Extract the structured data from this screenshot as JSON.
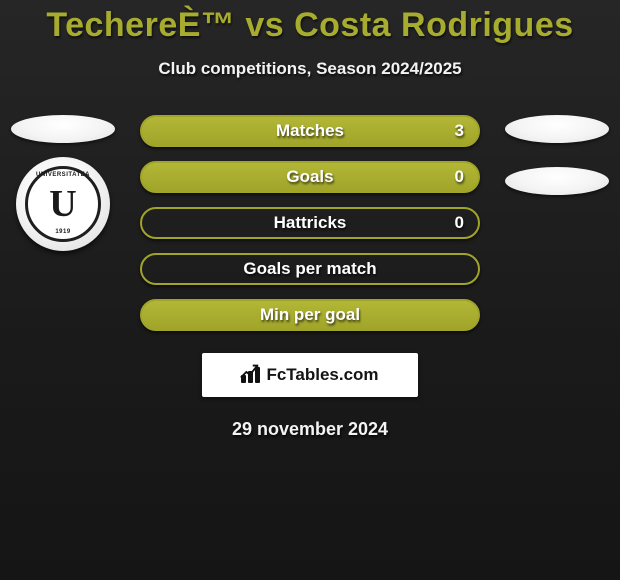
{
  "title": "TechereÈ™ vs Costa Rodrigues",
  "subtitle": "Club competitions, Season 2024/2025",
  "date": "29 november 2024",
  "colors": {
    "accent": "#a8ac2e",
    "bar_fill_top": "#b3b737",
    "bar_fill_bottom": "#a0a429",
    "bar_border": "#a0a429",
    "text_light": "#f3f3f3",
    "background_top": "#262626",
    "background_bottom": "#151515",
    "white": "#ffffff"
  },
  "left_team": {
    "logo_top_text": "UNIVERSITATEA",
    "logo_letter": "U",
    "logo_bottom_text": "1919",
    "logo_aria": "F.C. Universitatea Cluj 1919"
  },
  "stats": [
    {
      "label": "Matches",
      "value": "3",
      "filled": true,
      "has_value": true
    },
    {
      "label": "Goals",
      "value": "0",
      "filled": true,
      "has_value": true
    },
    {
      "label": "Hattricks",
      "value": "0",
      "filled": false,
      "has_value": true
    },
    {
      "label": "Goals per match",
      "value": "",
      "filled": false,
      "has_value": false
    },
    {
      "label": "Min per goal",
      "value": "",
      "filled": true,
      "has_value": false
    }
  ],
  "brand": {
    "text": "FcTables.com"
  }
}
